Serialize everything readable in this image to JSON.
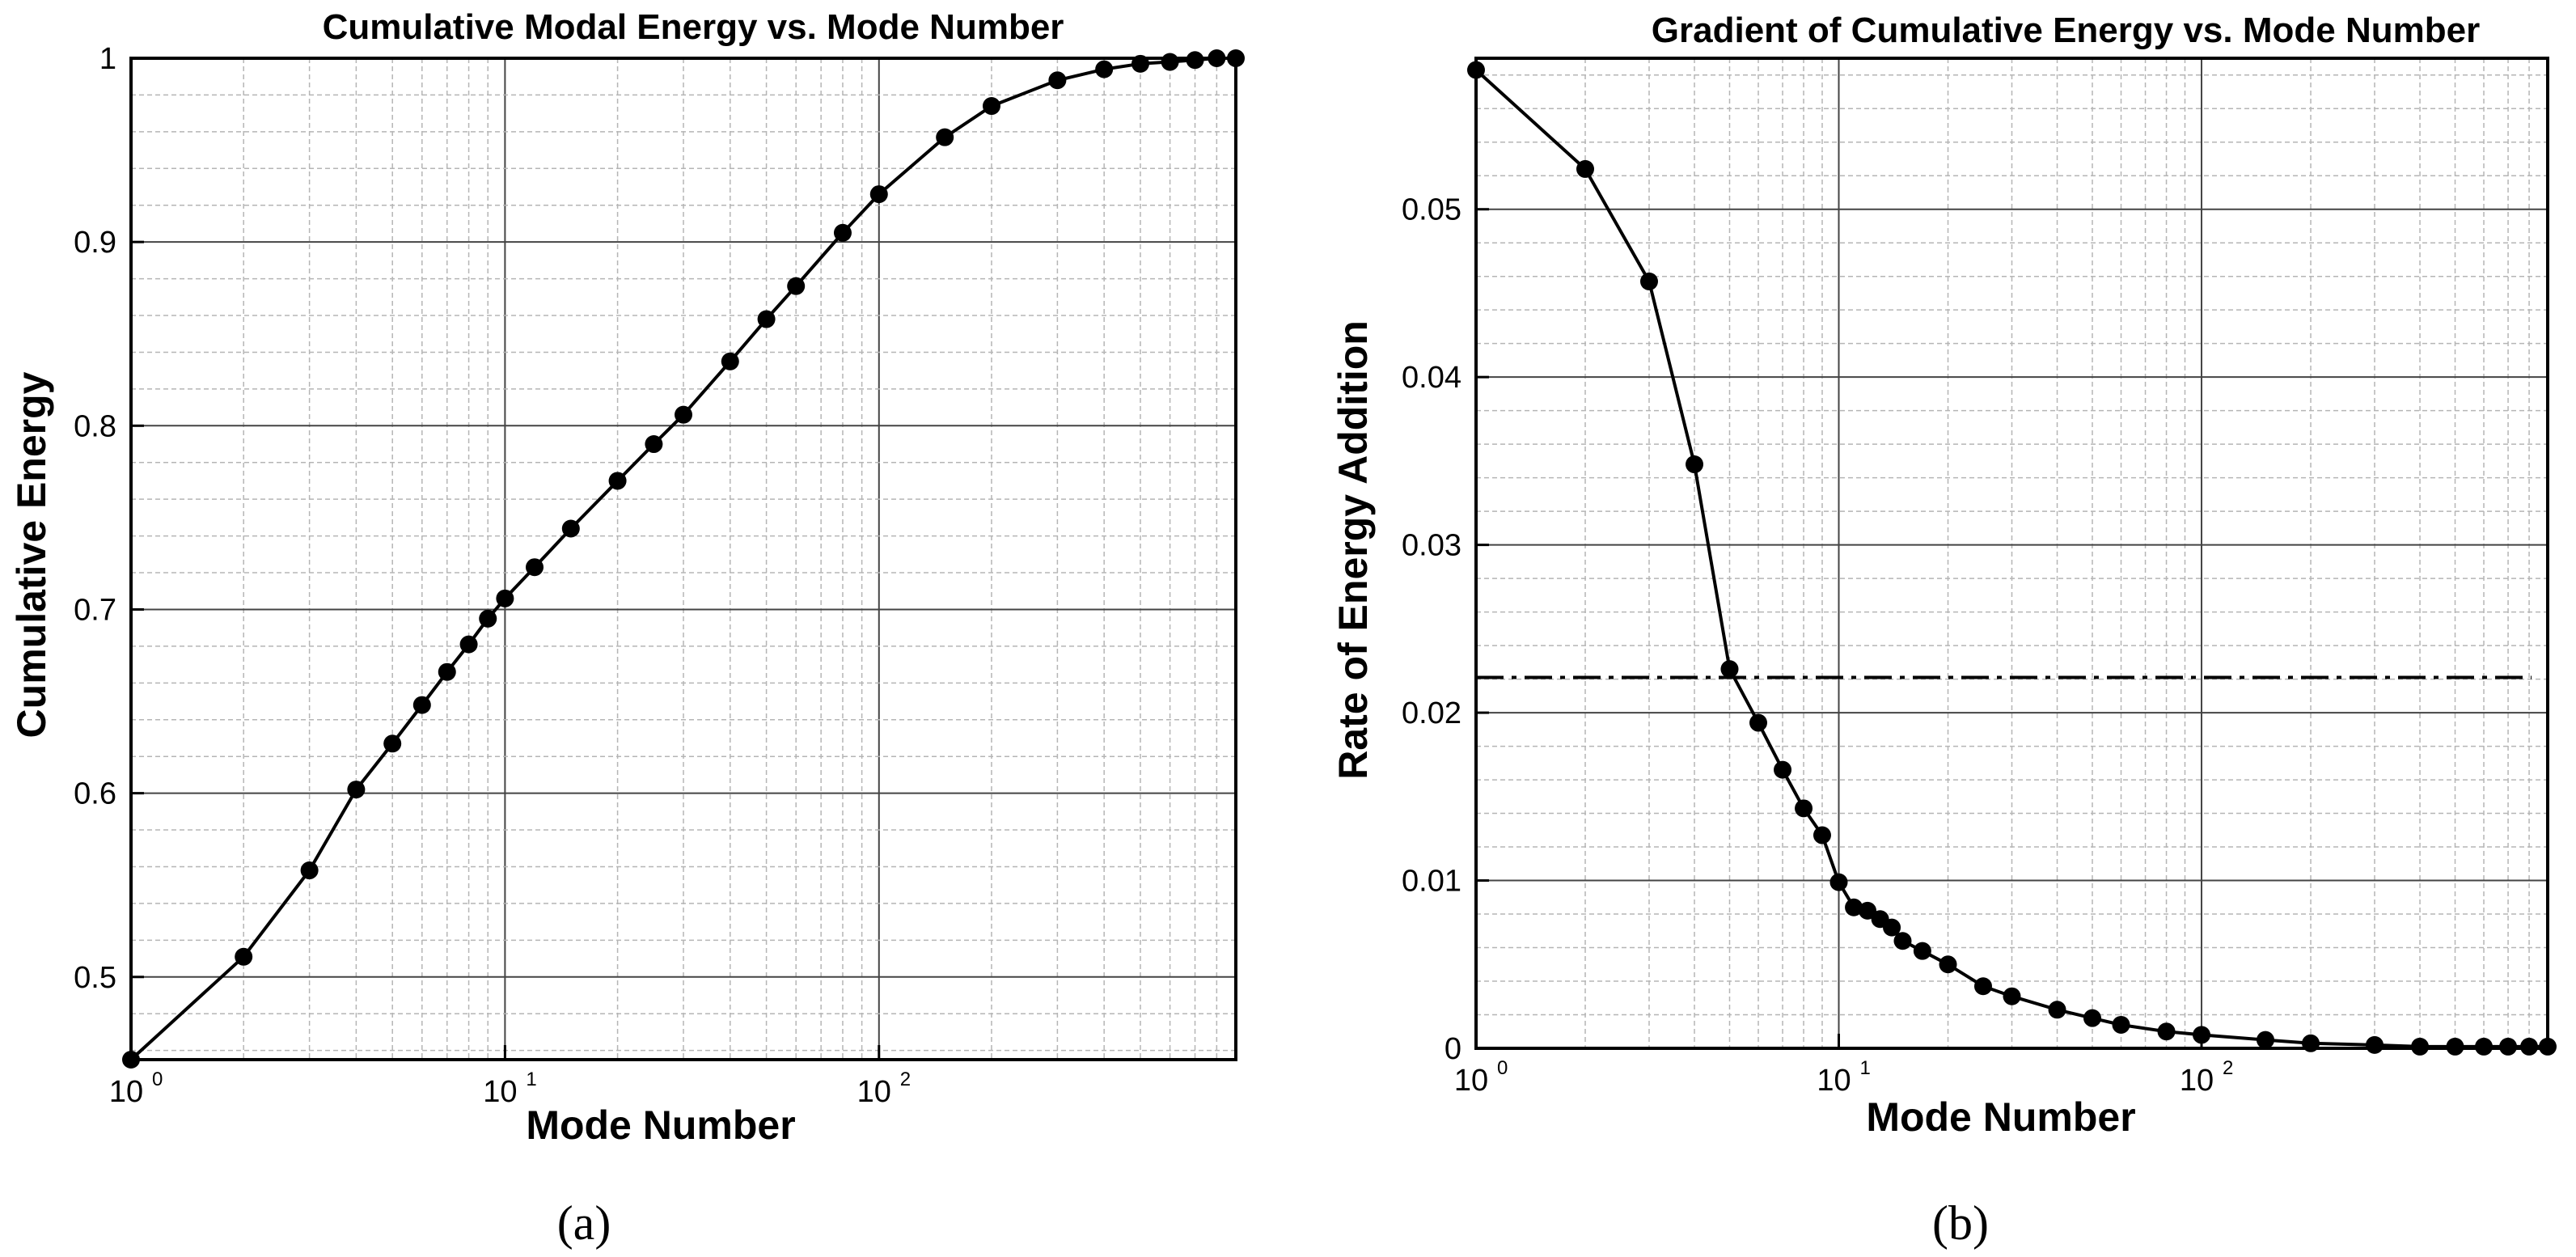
{
  "chart_data": [
    {
      "type": "line",
      "panel_label": "(a)",
      "title": "Cumulative Modal Energy vs. Mode Number",
      "xlabel": "Mode Number",
      "ylabel": "Cumulative Energy",
      "xscale": "log",
      "xlim": [
        1,
        900
      ],
      "ylim": [
        0.455,
        1.0
      ],
      "grid": "major and minor",
      "x_tick_labels": [
        {
          "base": "10",
          "exp": "0",
          "value": 1
        },
        {
          "base": "10",
          "exp": "1",
          "value": 10
        },
        {
          "base": "10",
          "exp": "2",
          "value": 100
        }
      ],
      "y_tick_labels": [
        "0.5",
        "0.6",
        "0.7",
        "0.8",
        "0.9",
        "1"
      ],
      "y_ticks": [
        0.5,
        0.6,
        0.7,
        0.8,
        0.9,
        1.0
      ],
      "series": [
        {
          "name": "Cumulative energy",
          "marker": "circle",
          "x": [
            1,
            2,
            3,
            4,
            5,
            6,
            7,
            8,
            9,
            10,
            12,
            15,
            20,
            25,
            30,
            40,
            50,
            60,
            80,
            100,
            150,
            200,
            300,
            400,
            500,
            600,
            700,
            800,
            900
          ],
          "y": [
            0.455,
            0.511,
            0.558,
            0.602,
            0.627,
            0.648,
            0.666,
            0.681,
            0.695,
            0.706,
            0.723,
            0.744,
            0.77,
            0.79,
            0.806,
            0.835,
            0.858,
            0.876,
            0.905,
            0.926,
            0.957,
            0.974,
            0.988,
            0.994,
            0.997,
            0.998,
            0.999,
            1.0,
            1.0
          ]
        }
      ]
    },
    {
      "type": "line",
      "panel_label": "(b)",
      "title": "Gradient of Cumulative Energy vs. Mode Number",
      "xlabel": "Mode Number",
      "ylabel": "Rate of Energy Addition",
      "xscale": "log",
      "xlim": [
        1,
        900
      ],
      "ylim": [
        0,
        0.059
      ],
      "grid": "major and minor",
      "x_tick_labels": [
        {
          "base": "10",
          "exp": "0",
          "value": 1
        },
        {
          "base": "10",
          "exp": "1",
          "value": 10
        },
        {
          "base": "10",
          "exp": "2",
          "value": 100
        }
      ],
      "y_tick_labels": [
        "0",
        "0.01",
        "0.02",
        "0.03",
        "0.04",
        "0.05"
      ],
      "y_ticks": [
        0,
        0.01,
        0.02,
        0.03,
        0.04,
        0.05
      ],
      "threshold": {
        "y": 0.0221,
        "style": "dash-dot",
        "x_from": 1,
        "x_to": 900
      },
      "series": [
        {
          "name": "Rate of energy addition",
          "marker": "circle",
          "x": [
            1,
            2,
            3,
            4,
            5,
            6,
            7,
            8,
            9,
            10,
            11,
            12,
            13,
            14,
            15,
            17,
            20,
            25,
            30,
            40,
            50,
            60,
            80,
            100,
            150,
            200,
            300,
            400,
            500,
            600,
            700,
            800,
            900
          ],
          "y": [
            0.0583,
            0.0524,
            0.0457,
            0.0348,
            0.0226,
            0.0194,
            0.0166,
            0.0143,
            0.0127,
            0.0099,
            0.0084,
            0.0082,
            0.0077,
            0.0072,
            0.0064,
            0.0058,
            0.005,
            0.0037,
            0.0031,
            0.0023,
            0.0018,
            0.0014,
            0.001,
            0.0008,
            0.0005,
            0.0003,
            0.0002,
            0.0001,
            0.0001,
            0.0001,
            0.0001,
            0.0001,
            0.0001
          ]
        }
      ]
    }
  ]
}
